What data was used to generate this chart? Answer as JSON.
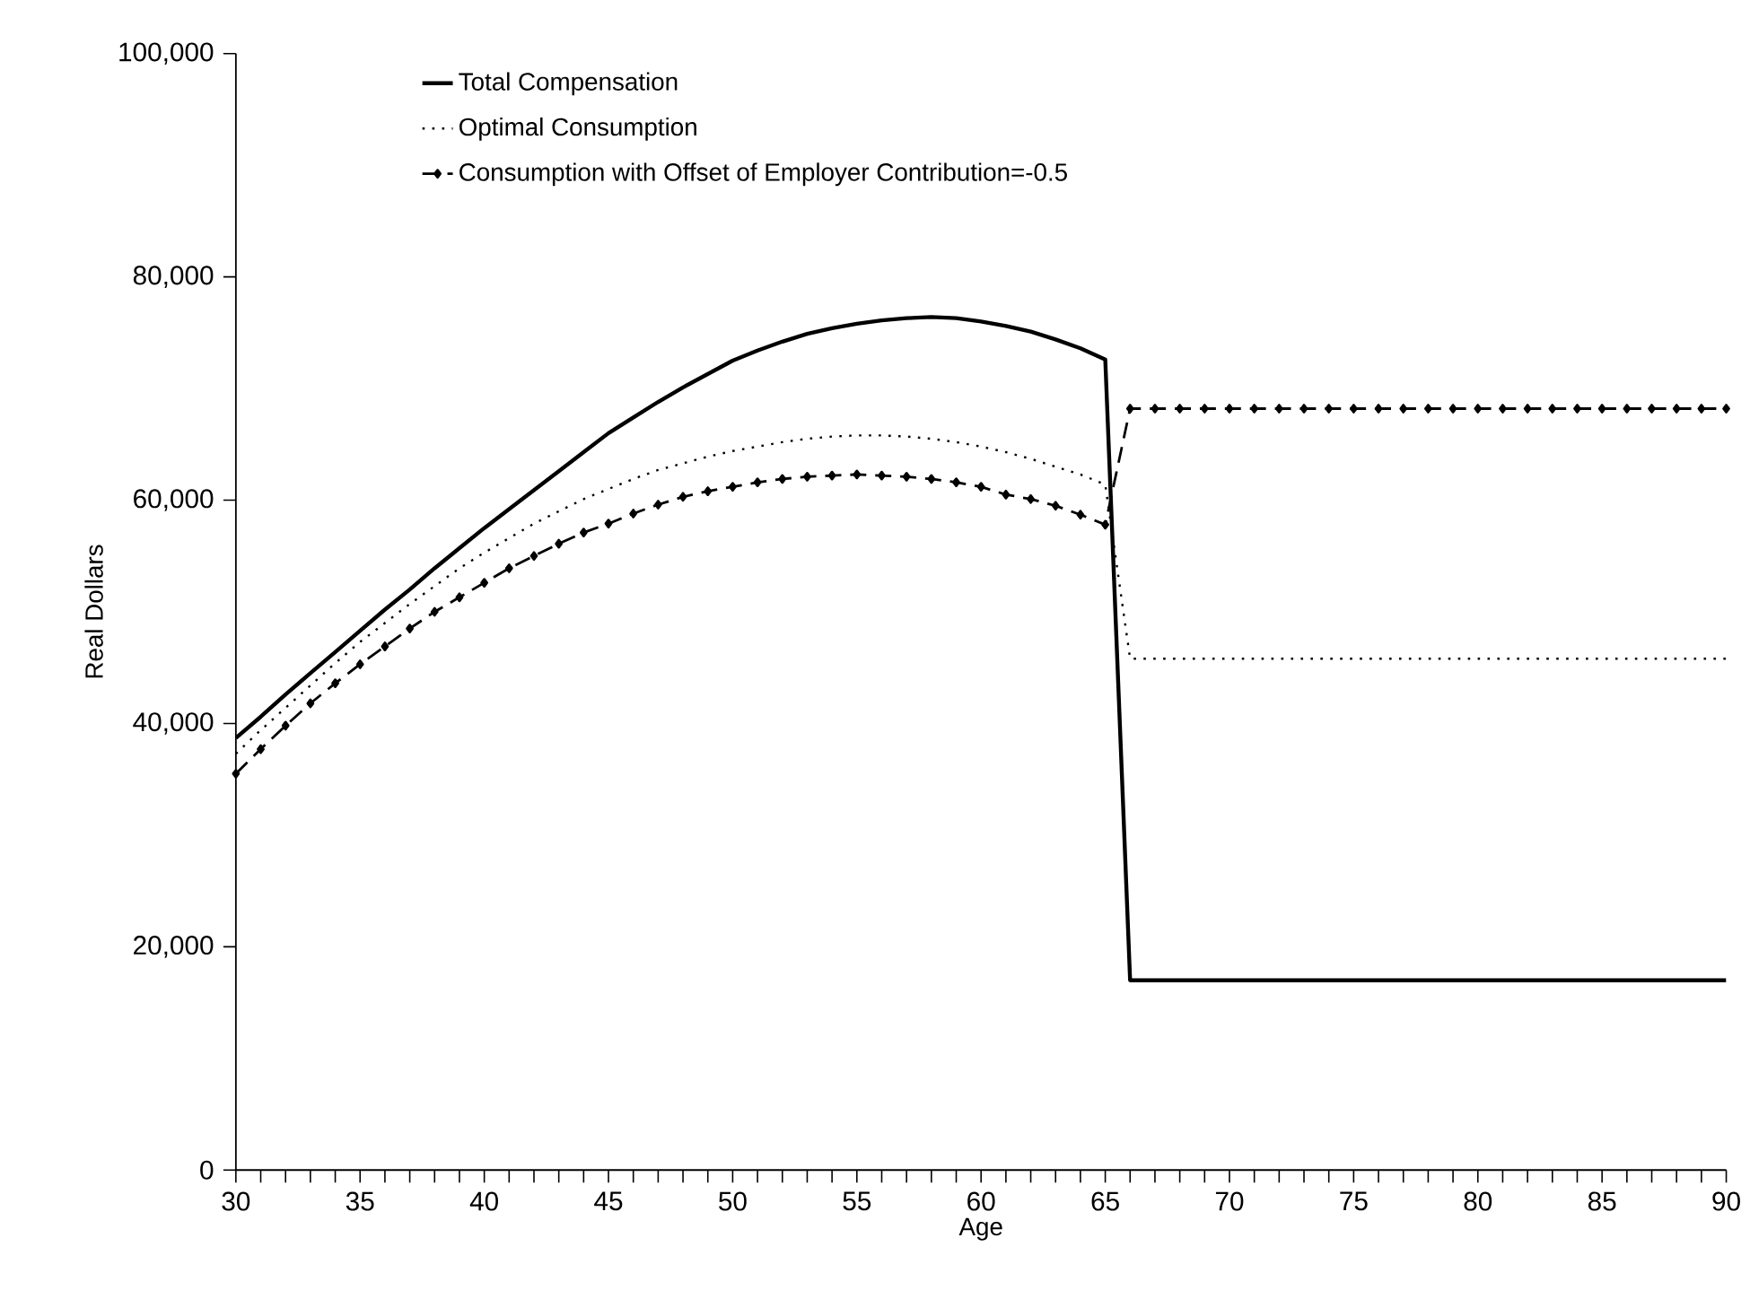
{
  "chart_data": {
    "type": "line",
    "xlabel": "Age",
    "ylabel": "Real Dollars",
    "x": [
      30,
      31,
      32,
      33,
      34,
      35,
      36,
      37,
      38,
      39,
      40,
      41,
      42,
      43,
      44,
      45,
      46,
      47,
      48,
      49,
      50,
      51,
      52,
      53,
      54,
      55,
      56,
      57,
      58,
      59,
      60,
      61,
      62,
      63,
      64,
      65,
      66,
      67,
      68,
      69,
      70,
      71,
      72,
      73,
      74,
      75,
      76,
      77,
      78,
      79,
      80,
      81,
      82,
      83,
      84,
      85,
      86,
      87,
      88,
      89,
      90
    ],
    "series": [
      {
        "name": "Total Compensation",
        "color": "#000000",
        "line_style": "solid",
        "marker": "none",
        "values": [
          38700,
          40600,
          42600,
          44500,
          46400,
          48300,
          50200,
          52000,
          53900,
          55700,
          57500,
          59200,
          60900,
          62600,
          64300,
          66000,
          67400,
          68800,
          70100,
          71300,
          72500,
          73400,
          74200,
          74900,
          75400,
          75800,
          76100,
          76300,
          76400,
          76300,
          76000,
          75600,
          75100,
          74400,
          73600,
          72600,
          17000,
          17000,
          17000,
          17000,
          17000,
          17000,
          17000,
          17000,
          17000,
          17000,
          17000,
          17000,
          17000,
          17000,
          17000,
          17000,
          17000,
          17000,
          17000,
          17000,
          17000,
          17000,
          17000,
          17000,
          17000
        ]
      },
      {
        "name": "Optimal Consumption",
        "color": "#000000",
        "line_style": "dotted",
        "marker": "none",
        "values": [
          37300,
          39400,
          41400,
          43400,
          45400,
          47300,
          49000,
          50700,
          52300,
          53900,
          55300,
          56600,
          57900,
          59000,
          60100,
          61000,
          61900,
          62700,
          63300,
          63900,
          64400,
          64800,
          65200,
          65500,
          65700,
          65800,
          65800,
          65700,
          65500,
          65200,
          64800,
          64300,
          63700,
          63000,
          62300,
          61400,
          45800,
          45800,
          45800,
          45800,
          45800,
          45800,
          45800,
          45800,
          45800,
          45800,
          45800,
          45800,
          45800,
          45800,
          45800,
          45800,
          45800,
          45800,
          45800,
          45800,
          45800,
          45800,
          45800,
          45800,
          45800
        ]
      },
      {
        "name": "Consumption with Offset of Employer Contribution=-0.5",
        "color": "#000000",
        "line_style": "dashed",
        "marker": "diamond",
        "values": [
          35500,
          37700,
          39800,
          41800,
          43600,
          45300,
          46900,
          48500,
          50000,
          51300,
          52600,
          53900,
          55000,
          56100,
          57100,
          57900,
          58800,
          59600,
          60300,
          60800,
          61200,
          61600,
          61900,
          62100,
          62200,
          62300,
          62200,
          62100,
          61900,
          61600,
          61200,
          60500,
          60100,
          59500,
          58700,
          57800,
          68200,
          68200,
          68200,
          68200,
          68200,
          68200,
          68200,
          68200,
          68200,
          68200,
          68200,
          68200,
          68200,
          68200,
          68200,
          68200,
          68200,
          68200,
          68200,
          68200,
          68200,
          68200,
          68200,
          68200,
          68200
        ]
      }
    ],
    "xlim": [
      30,
      90
    ],
    "ylim": [
      0,
      100000
    ],
    "xticks": [
      30,
      {
        "value": 31,
        "label": null
      },
      {
        "value": 32,
        "label": null
      },
      {
        "value": 33,
        "label": null
      },
      {
        "value": 34,
        "label": null
      },
      35,
      {
        "value": 36,
        "label": null
      },
      {
        "value": 37,
        "label": null
      },
      {
        "value": 38,
        "label": null
      },
      {
        "value": 39,
        "label": null
      },
      40,
      {
        "value": 41,
        "label": null
      },
      {
        "value": 42,
        "label": null
      },
      {
        "value": 43,
        "label": null
      },
      {
        "value": 44,
        "label": null
      },
      45,
      {
        "value": 46,
        "label": null
      },
      {
        "value": 47,
        "label": null
      },
      {
        "value": 48,
        "label": null
      },
      {
        "value": 49,
        "label": null
      },
      50,
      {
        "value": 51,
        "label": null
      },
      {
        "value": 52,
        "label": null
      },
      {
        "value": 53,
        "label": null
      },
      {
        "value": 54,
        "label": null
      },
      55,
      {
        "value": 56,
        "label": null
      },
      {
        "value": 57,
        "label": null
      },
      {
        "value": 58,
        "label": null
      },
      {
        "value": 59,
        "label": null
      },
      60,
      {
        "value": 61,
        "label": null
      },
      {
        "value": 62,
        "label": null
      },
      {
        "value": 63,
        "label": null
      },
      {
        "value": 64,
        "label": null
      },
      65,
      {
        "value": 66,
        "label": null
      },
      {
        "value": 67,
        "label": null
      },
      {
        "value": 68,
        "label": null
      },
      {
        "value": 69,
        "label": null
      },
      70,
      {
        "value": 71,
        "label": null
      },
      {
        "value": 72,
        "label": null
      },
      {
        "value": 73,
        "label": null
      },
      {
        "value": 74,
        "label": null
      },
      75,
      {
        "value": 76,
        "label": null
      },
      {
        "value": 77,
        "label": null
      },
      {
        "value": 78,
        "label": null
      },
      {
        "value": 79,
        "label": null
      },
      80,
      {
        "value": 81,
        "label": null
      },
      {
        "value": 82,
        "label": null
      },
      {
        "value": 83,
        "label": null
      },
      {
        "value": 84,
        "label": null
      },
      85,
      {
        "value": 86,
        "label": null
      },
      {
        "value": 87,
        "label": null
      },
      {
        "value": 88,
        "label": null
      },
      {
        "value": 89,
        "label": null
      },
      90
    ],
    "yticks": [
      {
        "value": 0,
        "label": "0"
      },
      {
        "value": 20000,
        "label": "20,000"
      },
      {
        "value": 40000,
        "label": "40,000"
      },
      {
        "value": 60000,
        "label": "60,000"
      },
      {
        "value": 80000,
        "label": "80,000"
      },
      {
        "value": 100000,
        "label": "100,000"
      }
    ],
    "grid": false,
    "legend": "top left"
  }
}
